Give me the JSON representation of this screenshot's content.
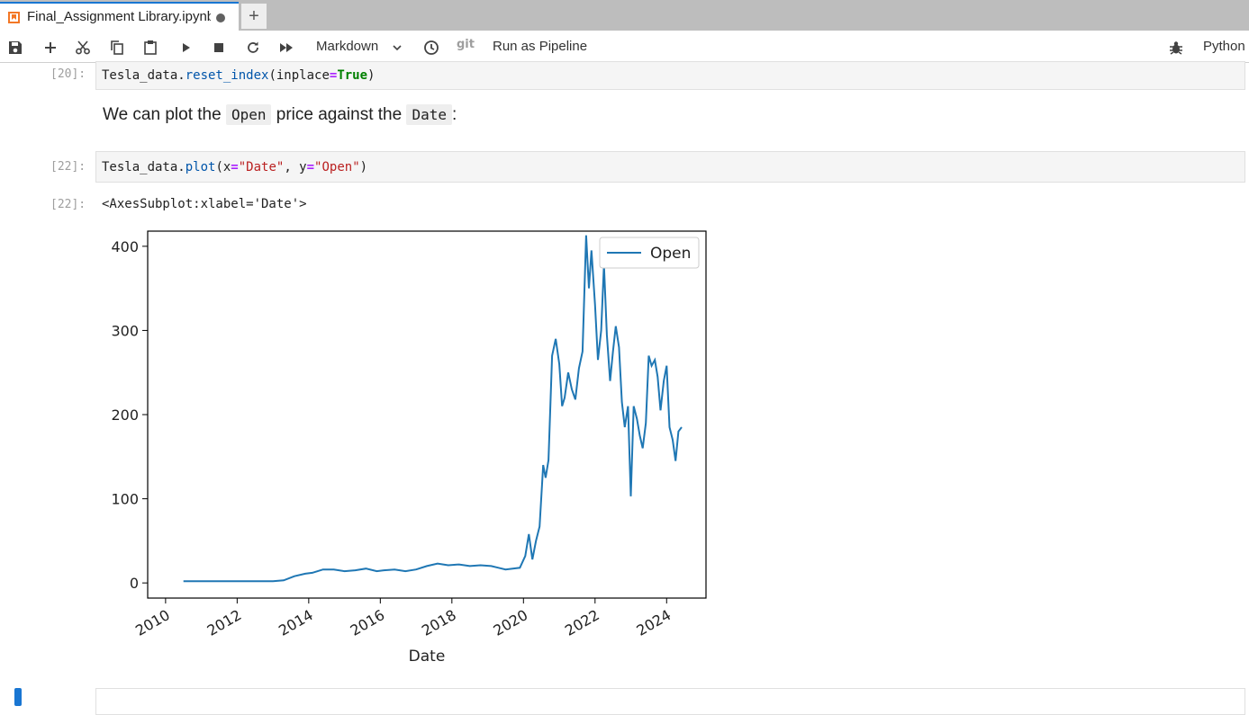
{
  "tab": {
    "title": "Final_Assignment Library.ipynb",
    "add_label": "+"
  },
  "toolbar": {
    "cell_type": "Markdown",
    "git_label": "git",
    "pipeline_label": "Run as Pipeline",
    "kernel_name": "Python",
    "icons": [
      "save-icon",
      "add-icon",
      "cut-icon",
      "copy-icon",
      "paste-icon",
      "run-icon",
      "stop-icon",
      "restart-icon",
      "fast-forward-icon",
      "clock-icon",
      "bug-icon"
    ]
  },
  "cells": {
    "cell20": {
      "prompt": "[20]:",
      "code": {
        "obj": "Tesla_data.",
        "fn": "reset_index",
        "open": "(inplace",
        "eq": "=",
        "kw": "True",
        "close": ")"
      }
    },
    "markdown": {
      "pre": "We can plot the ",
      "code1": "Open",
      "mid": " price against the ",
      "code2": "Date",
      "post": ":"
    },
    "cell22": {
      "prompt": "[22]:",
      "code": {
        "obj": "Tesla_data.",
        "fn": "plot",
        "p1": "(x",
        "eq1": "=",
        "s1": "\"Date\"",
        "p2": ", y",
        "eq2": "=",
        "s2": "\"Open\"",
        "p3": ")"
      },
      "out_prompt": "[22]:",
      "out_text": "<AxesSubplot:xlabel='Date'>"
    }
  },
  "chart_data": {
    "type": "line",
    "xlabel": "Date",
    "ylabel": "",
    "xlim": [
      2009.5,
      2025.1
    ],
    "ylim": [
      -18,
      418
    ],
    "x_ticks": [
      2010,
      2012,
      2014,
      2016,
      2018,
      2020,
      2022,
      2024
    ],
    "y_ticks": [
      0,
      100,
      200,
      300,
      400
    ],
    "legend": "top-right",
    "grid": false,
    "color": "#1f77b4",
    "series": [
      {
        "name": "Open",
        "x": [
          2010.5,
          2011.0,
          2011.5,
          2012.0,
          2012.5,
          2013.0,
          2013.3,
          2013.6,
          2013.9,
          2014.1,
          2014.4,
          2014.7,
          2015.0,
          2015.3,
          2015.6,
          2015.9,
          2016.1,
          2016.4,
          2016.7,
          2017.0,
          2017.3,
          2017.6,
          2017.9,
          2018.2,
          2018.5,
          2018.8,
          2019.1,
          2019.3,
          2019.5,
          2019.7,
          2019.9,
          2020.05,
          2020.15,
          2020.25,
          2020.35,
          2020.45,
          2020.55,
          2020.62,
          2020.7,
          2020.8,
          2020.9,
          2021.0,
          2021.08,
          2021.15,
          2021.25,
          2021.35,
          2021.45,
          2021.55,
          2021.65,
          2021.75,
          2021.83,
          2021.9,
          2022.0,
          2022.08,
          2022.17,
          2022.25,
          2022.33,
          2022.42,
          2022.5,
          2022.58,
          2022.67,
          2022.75,
          2022.83,
          2022.92,
          2023.0,
          2023.08,
          2023.17,
          2023.25,
          2023.33,
          2023.42,
          2023.5,
          2023.58,
          2023.67,
          2023.75,
          2023.83,
          2023.92,
          2024.0,
          2024.08,
          2024.17,
          2024.25,
          2024.33,
          2024.42
        ],
        "values": [
          2,
          2,
          2,
          2,
          2,
          2,
          3,
          8,
          11,
          12,
          16,
          16,
          14,
          15,
          17,
          14,
          15,
          16,
          14,
          16,
          20,
          23,
          21,
          22,
          20,
          21,
          20,
          18,
          16,
          17,
          18,
          32,
          58,
          28,
          50,
          67,
          140,
          125,
          146,
          270,
          290,
          260,
          210,
          220,
          250,
          230,
          218,
          255,
          275,
          413,
          350,
          395,
          330,
          265,
          300,
          378,
          295,
          240,
          275,
          305,
          280,
          215,
          185,
          210,
          103,
          210,
          195,
          175,
          160,
          190,
          270,
          258,
          265,
          245,
          205,
          240,
          258,
          185,
          170,
          145,
          180,
          185
        ]
      }
    ]
  }
}
